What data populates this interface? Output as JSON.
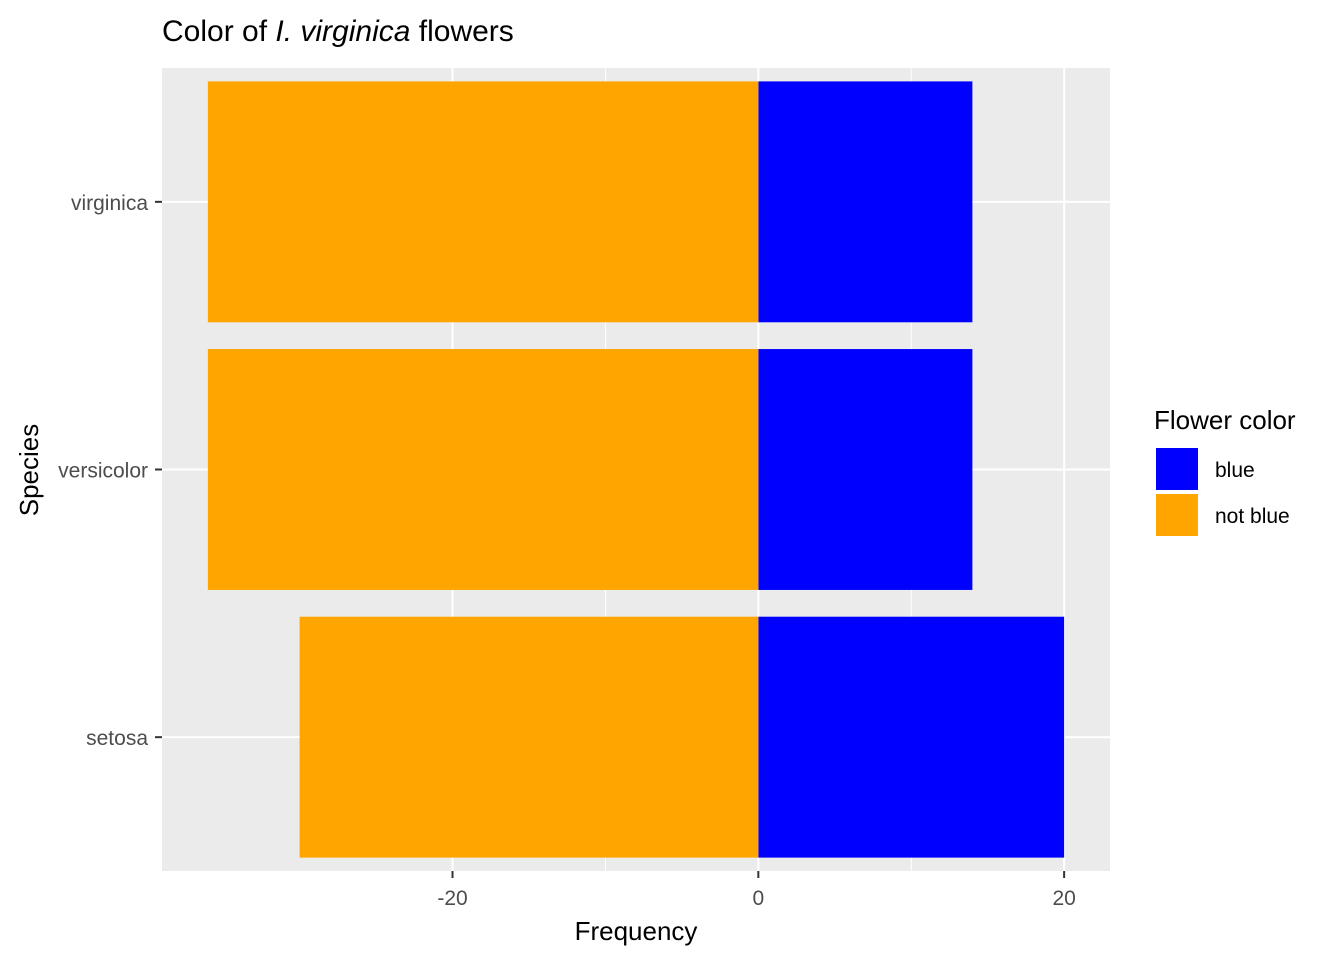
{
  "chart_data": {
    "type": "bar",
    "orientation": "horizontal",
    "stacking": "diverging",
    "title_parts": [
      {
        "text": "Color of ",
        "italic": false
      },
      {
        "text": "I. virginica",
        "italic": true
      },
      {
        "text": " flowers",
        "italic": false
      }
    ],
    "xlabel": "Frequency",
    "ylabel": "Species",
    "categories": [
      "setosa",
      "versicolor",
      "virginica"
    ],
    "series": [
      {
        "name": "blue",
        "values": [
          20,
          14,
          14
        ],
        "color": "#0000FF"
      },
      {
        "name": "not blue",
        "values": [
          -30,
          -36,
          -36
        ],
        "color": "#FFA500"
      }
    ],
    "xlim": [
      -39,
      23
    ],
    "xticks": [
      -20,
      0,
      20
    ],
    "xtick_labels": [
      "-20",
      "0",
      "20"
    ],
    "grid": true,
    "panel_background": "#EBEBEB",
    "legend": {
      "title": "Flower color",
      "position": "right",
      "entries": [
        {
          "label": "blue",
          "color": "#0000FF"
        },
        {
          "label": "not blue",
          "color": "#FFA500"
        }
      ]
    }
  }
}
